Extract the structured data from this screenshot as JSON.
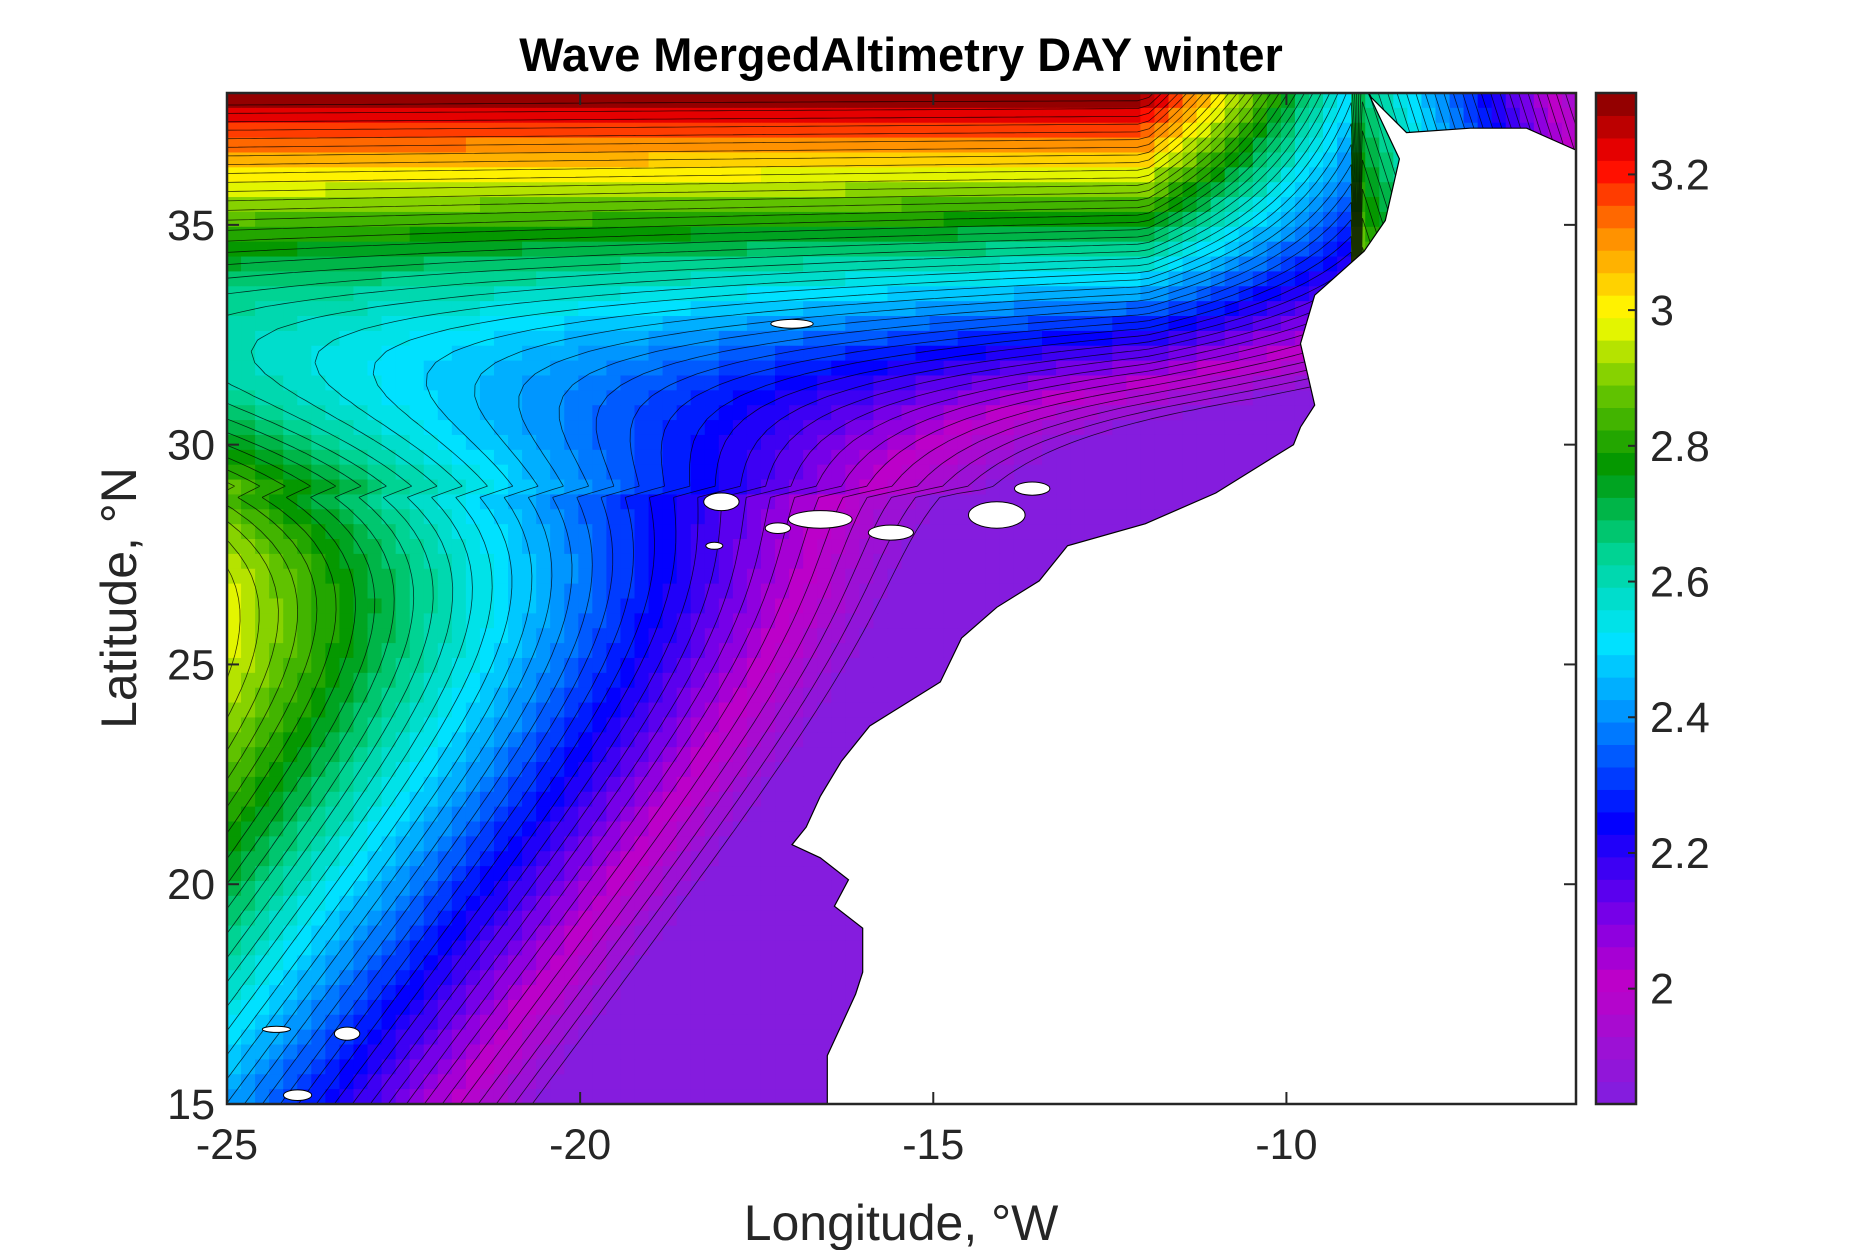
{
  "chart_data": {
    "type": "heatmap",
    "title": "Wave MergedAltimetry DAY winter",
    "xlabel": "Longitude, °W",
    "ylabel": "Latitude, °N",
    "xlim": [
      -25,
      -5.9
    ],
    "ylim": [
      15,
      38
    ],
    "x_ticks": [
      -25,
      -20,
      -15,
      -10
    ],
    "x_tick_labels": [
      "-25",
      "-20",
      "-15",
      "-10"
    ],
    "y_ticks": [
      15,
      20,
      25,
      30,
      35
    ],
    "y_tick_labels": [
      "15",
      "20",
      "25",
      "30",
      "35"
    ],
    "colorbar": {
      "range": [
        1.83,
        3.32
      ],
      "ticks": [
        2,
        2.2,
        2.4,
        2.6,
        2.8,
        3,
        3.2
      ],
      "tick_labels": [
        "2",
        "2.2",
        "2.4",
        "2.6",
        "2.8",
        "3",
        "3.2"
      ],
      "colormap": "rainbow (violet → blue → cyan → green → yellow → red → dark red)"
    },
    "grid": false,
    "contour_levels": 45,
    "units_note": "",
    "colors": {
      "min": "#7f1fe0",
      "low": "#0000ff",
      "mid_low": "#00e5ff",
      "mid": "#009a00",
      "mid_high": "#ffff00",
      "high": "#ff0000",
      "max": "#800000",
      "land": "#ffffff",
      "contour_line": "#000000"
    }
  }
}
